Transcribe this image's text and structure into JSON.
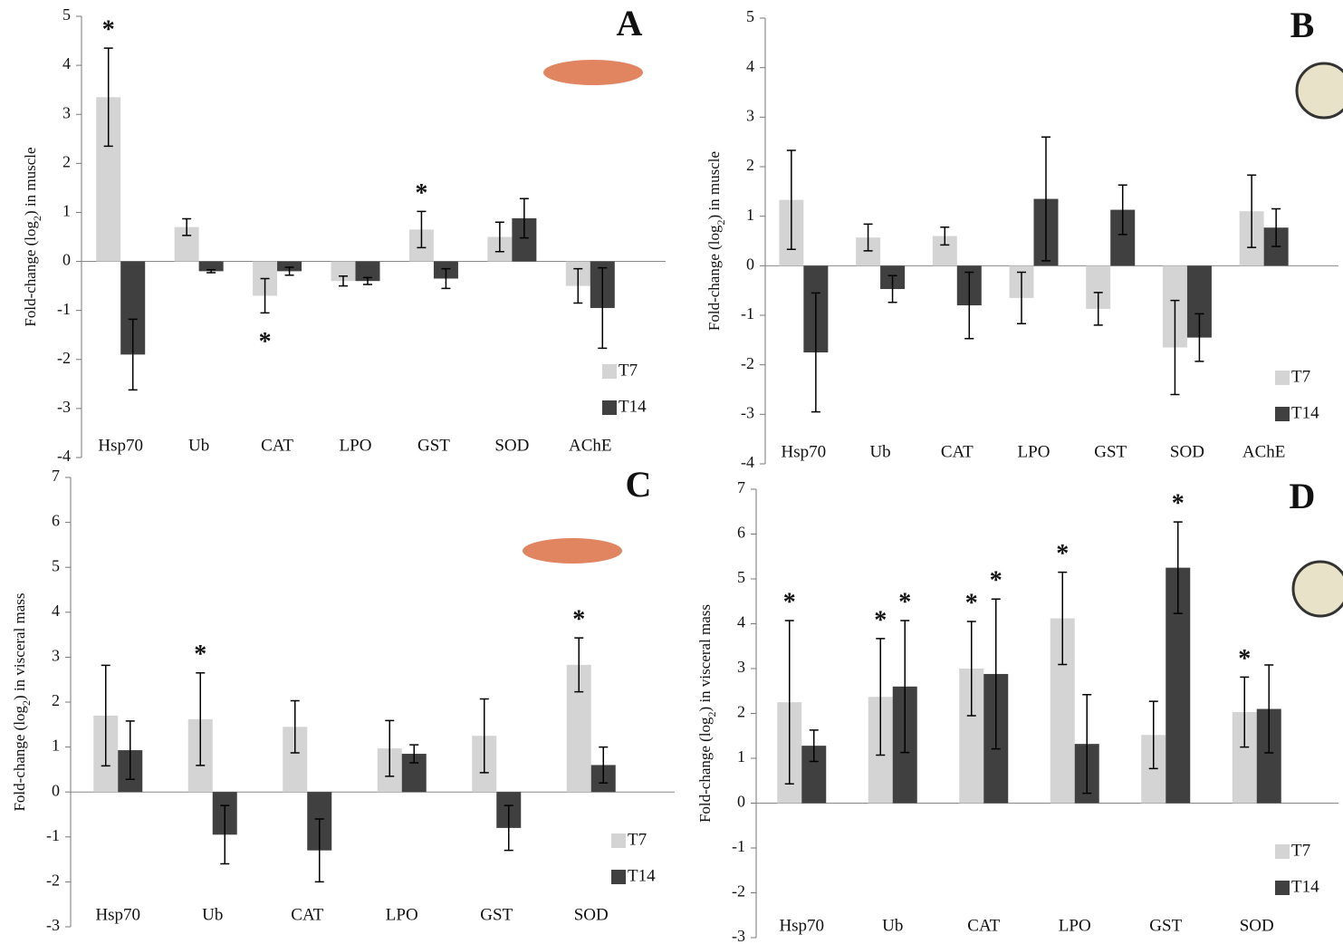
{
  "chart_data": [
    {
      "type": "bar",
      "label": "A",
      "ylabel": [
        "Fold-change (log",
        "2",
        ") in muscle"
      ],
      "categories": [
        "Hsp70",
        "Ub",
        "CAT",
        "LPO",
        "GST",
        "SOD",
        "AChE"
      ],
      "series": [
        {
          "name": "T7",
          "color": "#d4d4d4",
          "values": [
            3.35,
            0.7,
            -0.7,
            -0.4,
            0.65,
            0.5,
            -0.5
          ],
          "errors": [
            1.0,
            0.17,
            0.35,
            0.1,
            0.37,
            0.3,
            0.35
          ]
        },
        {
          "name": "T14",
          "color": "#404040",
          "values": [
            -1.9,
            -0.2,
            -0.2,
            -0.4,
            -0.35,
            0.88,
            -0.95
          ],
          "errors": [
            0.72,
            0.03,
            0.08,
            0.07,
            0.2,
            0.4,
            0.82
          ]
        }
      ],
      "ylim": [
        -4,
        5
      ],
      "yticks": [
        -4,
        -3,
        -2,
        -1,
        0,
        1,
        2,
        3,
        4,
        5
      ],
      "legend": "lower right",
      "annotations": [
        {
          "text": "*",
          "category": 0,
          "series": 0,
          "side": "above"
        },
        {
          "text": "*",
          "category": 2,
          "series": 0,
          "side": "below"
        },
        {
          "text": "*",
          "category": 4,
          "series": 0,
          "side": "above"
        }
      ]
    },
    {
      "type": "bar",
      "label": "B",
      "ylabel": [
        "Fold-change (log",
        "2",
        ") in muscle"
      ],
      "categories": [
        "Hsp70",
        "Ub",
        "CAT",
        "LPO",
        "GST",
        "SOD",
        "AChE"
      ],
      "series": [
        {
          "name": "T7",
          "color": "#d4d4d4",
          "values": [
            1.33,
            0.57,
            0.6,
            -0.65,
            -0.87,
            -1.65,
            1.1
          ],
          "errors": [
            1.0,
            0.27,
            0.18,
            0.52,
            0.33,
            0.95,
            0.73
          ]
        },
        {
          "name": "T14",
          "color": "#404040",
          "values": [
            -1.75,
            -0.47,
            -0.8,
            1.35,
            1.13,
            -1.45,
            0.77
          ],
          "errors": [
            1.2,
            0.27,
            0.67,
            1.25,
            0.5,
            0.48,
            0.38
          ]
        }
      ],
      "ylim": [
        -4,
        5
      ],
      "yticks": [
        -4,
        -3,
        -2,
        -1,
        0,
        1,
        2,
        3,
        4,
        5
      ],
      "legend": "lower right",
      "annotations": []
    },
    {
      "type": "bar",
      "label": "C",
      "ylabel": [
        "Fold-change (log",
        "2",
        ") in visceral mass"
      ],
      "categories": [
        "Hsp70",
        "Ub",
        "CAT",
        "LPO",
        "GST",
        "SOD"
      ],
      "series": [
        {
          "name": "T7",
          "color": "#d4d4d4",
          "values": [
            1.7,
            1.62,
            1.45,
            0.97,
            1.25,
            2.83
          ],
          "errors": [
            1.12,
            1.03,
            0.58,
            0.62,
            0.82,
            0.6
          ]
        },
        {
          "name": "T14",
          "color": "#404040",
          "values": [
            0.93,
            -0.95,
            -1.3,
            0.85,
            -0.8,
            0.6
          ],
          "errors": [
            0.65,
            0.65,
            0.7,
            0.2,
            0.5,
            0.4
          ]
        }
      ],
      "ylim": [
        -3,
        7
      ],
      "yticks": [
        -3,
        -2,
        -1,
        0,
        1,
        2,
        3,
        4,
        5,
        6,
        7
      ],
      "legend": "lower right",
      "annotations": [
        {
          "text": "*",
          "category": 1,
          "series": 0,
          "side": "above"
        },
        {
          "text": "*",
          "category": 5,
          "series": 0,
          "side": "above"
        }
      ]
    },
    {
      "type": "bar",
      "label": "D",
      "ylabel": [
        "Fold-change (log",
        "2",
        ") in visceral mass"
      ],
      "categories": [
        "Hsp70",
        "Ub",
        "CAT",
        "LPO",
        "GST",
        "SOD"
      ],
      "series": [
        {
          "name": "T7",
          "color": "#d4d4d4",
          "values": [
            2.25,
            2.37,
            3.0,
            4.12,
            1.52,
            2.03
          ],
          "errors": [
            1.82,
            1.3,
            1.05,
            1.03,
            0.75,
            0.78
          ]
        },
        {
          "name": "T14",
          "color": "#404040",
          "values": [
            1.28,
            2.6,
            2.88,
            1.32,
            5.25,
            2.1
          ],
          "errors": [
            0.35,
            1.47,
            1.67,
            1.1,
            1.02,
            0.98
          ]
        }
      ],
      "ylim": [
        -3,
        7
      ],
      "yticks": [
        -3,
        -2,
        -1,
        0,
        1,
        2,
        3,
        4,
        5,
        6,
        7
      ],
      "legend": "lower right",
      "annotations": [
        {
          "text": "*",
          "category": 0,
          "series": 0,
          "side": "above"
        },
        {
          "text": "*",
          "category": 1,
          "series": 0,
          "side": "above"
        },
        {
          "text": "*",
          "category": 1,
          "series": 1,
          "side": "above"
        },
        {
          "text": "*",
          "category": 2,
          "series": 0,
          "side": "above"
        },
        {
          "text": "*",
          "category": 2,
          "series": 1,
          "side": "above"
        },
        {
          "text": "*",
          "category": 3,
          "series": 0,
          "side": "above"
        },
        {
          "text": "*",
          "category": 4,
          "series": 1,
          "side": "above"
        },
        {
          "text": "*",
          "category": 5,
          "series": 0,
          "side": "above"
        }
      ]
    }
  ]
}
